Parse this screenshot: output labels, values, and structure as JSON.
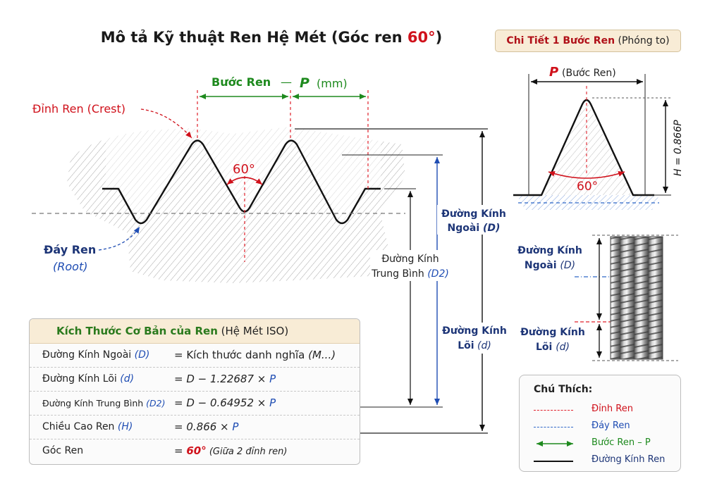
{
  "title": {
    "prefix": "Mô tả Kỹ thuật Ren Hệ Mét (Góc ren ",
    "angle": "60°",
    "suffix": ")"
  },
  "detail": {
    "title_bold": "Chi Tiết 1 Bước Ren",
    "title_rest": " (Phóng to)",
    "pitch_symbol": "P",
    "pitch_label": "(Bước Ren)",
    "height_label": "H = 0.866P",
    "angle": "60°"
  },
  "profile": {
    "pitch_label": "Bước Ren",
    "pitch_dash": "—",
    "pitch_symbol": "P",
    "pitch_unit": "(mm)",
    "crest_label": "Đỉnh Ren (Crest)",
    "root_label": "Đáy Ren",
    "root_en": "(Root)",
    "angle": "60°"
  },
  "dimensions": {
    "outer_l1": "Đường Kính",
    "outer_l2": "Ngoài",
    "outer_sym": "(D)",
    "pitch_l1": "Đường Kính",
    "pitch_l2": "Trung Bình",
    "pitch_sym": "(D2)",
    "minor_l1": "Đường Kính",
    "minor_l2": "Lõi",
    "minor_sym": "(d)"
  },
  "bolt": {
    "outer_l1": "Đường Kính",
    "outer_l2": "Ngoài",
    "outer_sym": "(D)",
    "minor_l1": "Đường Kính",
    "minor_l2": "Lõi",
    "minor_sym": "(d)"
  },
  "table": {
    "head_bold": "Kích Thước Cơ Bản của Ren",
    "head_rest": " (Hệ Mét ISO)",
    "rows": [
      {
        "label": "Đường Kính Ngoài ",
        "sym": "(D)",
        "eq": "= Kích thước danh nghĩa ",
        "tail": "(M...)"
      },
      {
        "label": "Đường Kính Lõi ",
        "sym": "(d)",
        "eq": "= D − 1.22687 × ",
        "tail": "P"
      },
      {
        "label": "Đường Kính Trung Bình ",
        "sym": "(D2)",
        "eq": "= D − 0.64952 × ",
        "tail": "P"
      },
      {
        "label": "Chiều Cao Ren ",
        "sym": "(H)",
        "eq": "= 0.866 × ",
        "tail": "P"
      },
      {
        "label": "Góc Ren",
        "sym": "",
        "eq": "= ",
        "tail": "60°",
        "note": " (Giữa 2 đỉnh ren)"
      }
    ]
  },
  "legend": {
    "title": "Chú Thích:",
    "items": [
      {
        "text": "Đỉnh Ren",
        "color": "#e0202a"
      },
      {
        "text": "Đáy Ren",
        "color": "#2f67c8"
      },
      {
        "text": "Bước Ren – P",
        "color": "#1e8a1e"
      },
      {
        "text": "Đường Kính Ren",
        "color": "#111111"
      }
    ]
  },
  "colors": {
    "red": "#d0111b",
    "blue": "#1f4db3",
    "green": "#1e8a1e",
    "dark_blue": "#1d3577"
  }
}
